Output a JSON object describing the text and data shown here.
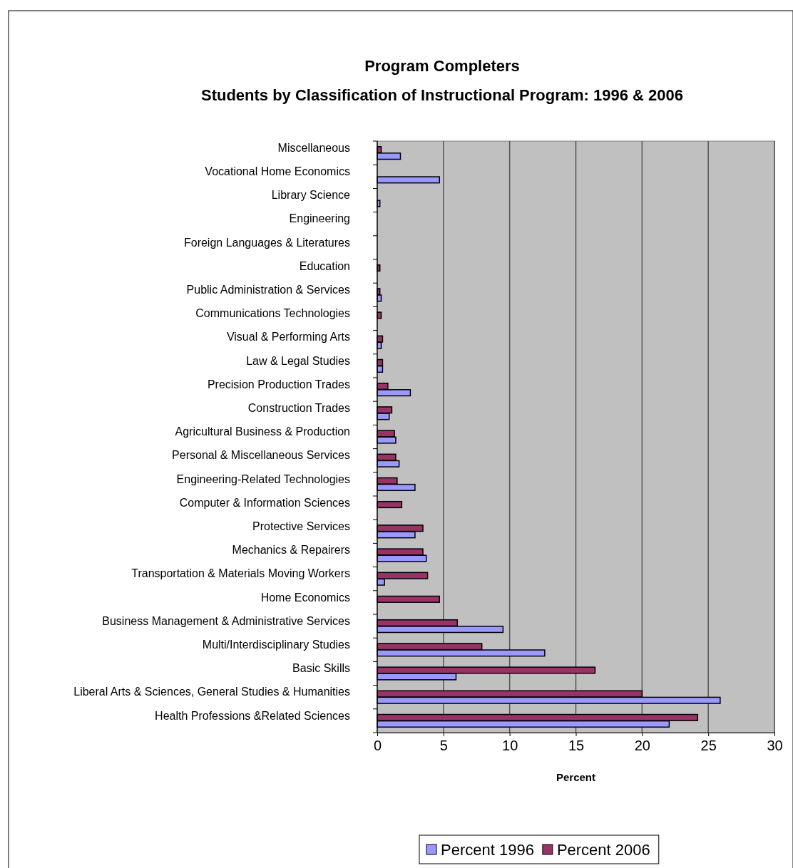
{
  "chart_data": {
    "type": "bar",
    "orientation": "horizontal",
    "title": "Program Completers",
    "subtitle": "Students by Classification of Instructional Program: 1996 & 2006",
    "xlabel": "Percent",
    "categories": [
      "Miscellaneous",
      "Vocational Home Economics",
      "Library Science",
      "Engineering",
      "Foreign Languages & Literatures",
      "Education",
      "Public Administration & Services",
      "Communications Technologies",
      "Visual & Performing Arts",
      "Law & Legal Studies",
      "Precision Production Trades",
      "Construction Trades",
      "Agricultural Business & Production",
      "Personal & Miscellaneous Services",
      "Engineering-Related Technologies",
      "Computer & Information Sciences",
      "Protective Services",
      "Mechanics & Repairers",
      "Transportation & Materials Moving Workers",
      "Home Economics",
      "Business Management & Administrative Services",
      "Multi/Interdisciplinary Studies",
      "Basic Skills",
      "Liberal Arts & Sciences, General Studies & Humanities",
      "Health Professions &Related Sciences"
    ],
    "series": [
      {
        "name": "Percent 1996",
        "color": "#9999ff",
        "values": [
          1.75,
          4.7,
          0.2,
          0,
          0,
          0,
          0.3,
          0,
          0.3,
          0.4,
          2.5,
          0.9,
          1.4,
          1.65,
          2.85,
          0,
          2.85,
          3.7,
          0.55,
          0,
          9.5,
          12.65,
          5.95,
          25.9,
          22.05
        ]
      },
      {
        "name": "Percent 2006",
        "color": "#993366",
        "values": [
          0.3,
          0,
          0,
          0,
          0,
          0.2,
          0.2,
          0.3,
          0.4,
          0.4,
          0.8,
          1.1,
          1.3,
          1.4,
          1.5,
          1.85,
          3.45,
          3.45,
          3.8,
          4.7,
          6.05,
          7.9,
          16.45,
          20,
          24.2
        ]
      }
    ],
    "xlim": [
      0,
      30
    ],
    "xticks": [
      0,
      5,
      10,
      15,
      20,
      25,
      30
    ],
    "grid": "x",
    "legend": "bottom"
  }
}
